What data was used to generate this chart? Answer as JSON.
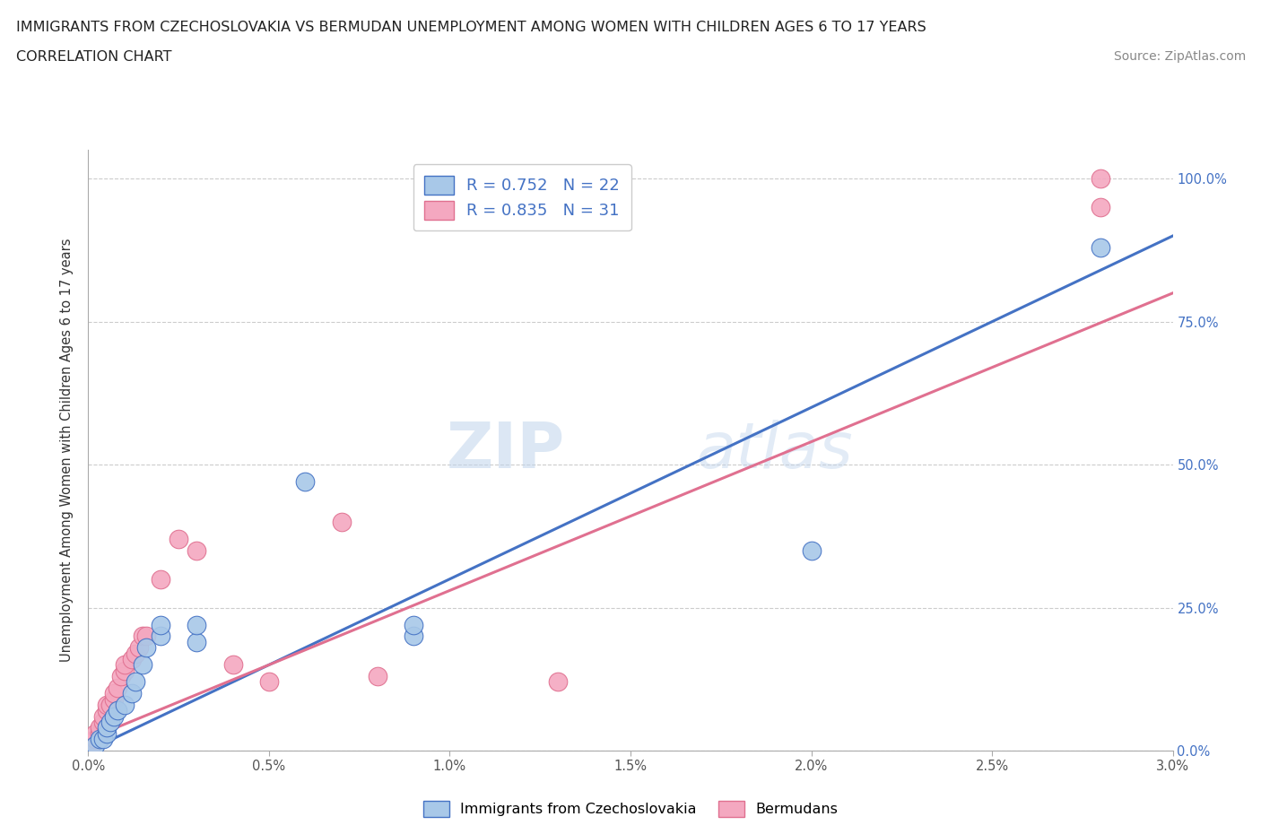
{
  "title_line1": "IMMIGRANTS FROM CZECHOSLOVAKIA VS BERMUDAN UNEMPLOYMENT AMONG WOMEN WITH CHILDREN AGES 6 TO 17 YEARS",
  "title_line2": "CORRELATION CHART",
  "source_text": "Source: ZipAtlas.com",
  "xlabel_ticks": [
    "0.0%",
    "0.5%",
    "1.0%",
    "1.5%",
    "2.0%",
    "2.5%",
    "3.0%"
  ],
  "ylabel_ticks": [
    "0.0%",
    "25.0%",
    "50.0%",
    "75.0%",
    "100.0%"
  ],
  "xlim": [
    0.0,
    0.03
  ],
  "ylim": [
    0.0,
    1.05
  ],
  "blue_R": 0.752,
  "blue_N": 22,
  "pink_R": 0.835,
  "pink_N": 31,
  "blue_color": "#a8c8e8",
  "pink_color": "#f4a8c0",
  "blue_line_color": "#4472c4",
  "pink_line_color": "#e07090",
  "legend_label_blue": "Immigrants from Czechoslovakia",
  "legend_label_pink": "Bermudans",
  "watermark_zip": "ZIP",
  "watermark_atlas": "atlas",
  "blue_scatter_x": [
    0.0002,
    0.0003,
    0.0004,
    0.0005,
    0.0005,
    0.0006,
    0.0007,
    0.0008,
    0.001,
    0.0012,
    0.0013,
    0.0015,
    0.0016,
    0.002,
    0.002,
    0.003,
    0.003,
    0.006,
    0.009,
    0.009,
    0.02,
    0.028
  ],
  "blue_scatter_y": [
    0.01,
    0.02,
    0.02,
    0.03,
    0.04,
    0.05,
    0.06,
    0.07,
    0.08,
    0.1,
    0.12,
    0.15,
    0.18,
    0.2,
    0.22,
    0.19,
    0.22,
    0.47,
    0.2,
    0.22,
    0.35,
    0.88
  ],
  "pink_scatter_x": [
    0.0001,
    0.0002,
    0.0002,
    0.0003,
    0.0003,
    0.0004,
    0.0004,
    0.0005,
    0.0005,
    0.0006,
    0.0007,
    0.0007,
    0.0008,
    0.0009,
    0.001,
    0.001,
    0.0012,
    0.0013,
    0.0014,
    0.0015,
    0.0016,
    0.002,
    0.0025,
    0.003,
    0.004,
    0.005,
    0.007,
    0.008,
    0.013,
    0.028,
    0.028
  ],
  "pink_scatter_y": [
    0.01,
    0.02,
    0.03,
    0.03,
    0.04,
    0.05,
    0.06,
    0.07,
    0.08,
    0.08,
    0.09,
    0.1,
    0.11,
    0.13,
    0.14,
    0.15,
    0.16,
    0.17,
    0.18,
    0.2,
    0.2,
    0.3,
    0.37,
    0.35,
    0.15,
    0.12,
    0.4,
    0.13,
    0.12,
    0.95,
    1.0
  ],
  "blue_line_x0": 0.0,
  "blue_line_y0": 0.0,
  "blue_line_x1": 0.03,
  "blue_line_y1": 0.9,
  "pink_line_x0": 0.0,
  "pink_line_y0": 0.02,
  "pink_line_x1": 0.03,
  "pink_line_y1": 0.8
}
